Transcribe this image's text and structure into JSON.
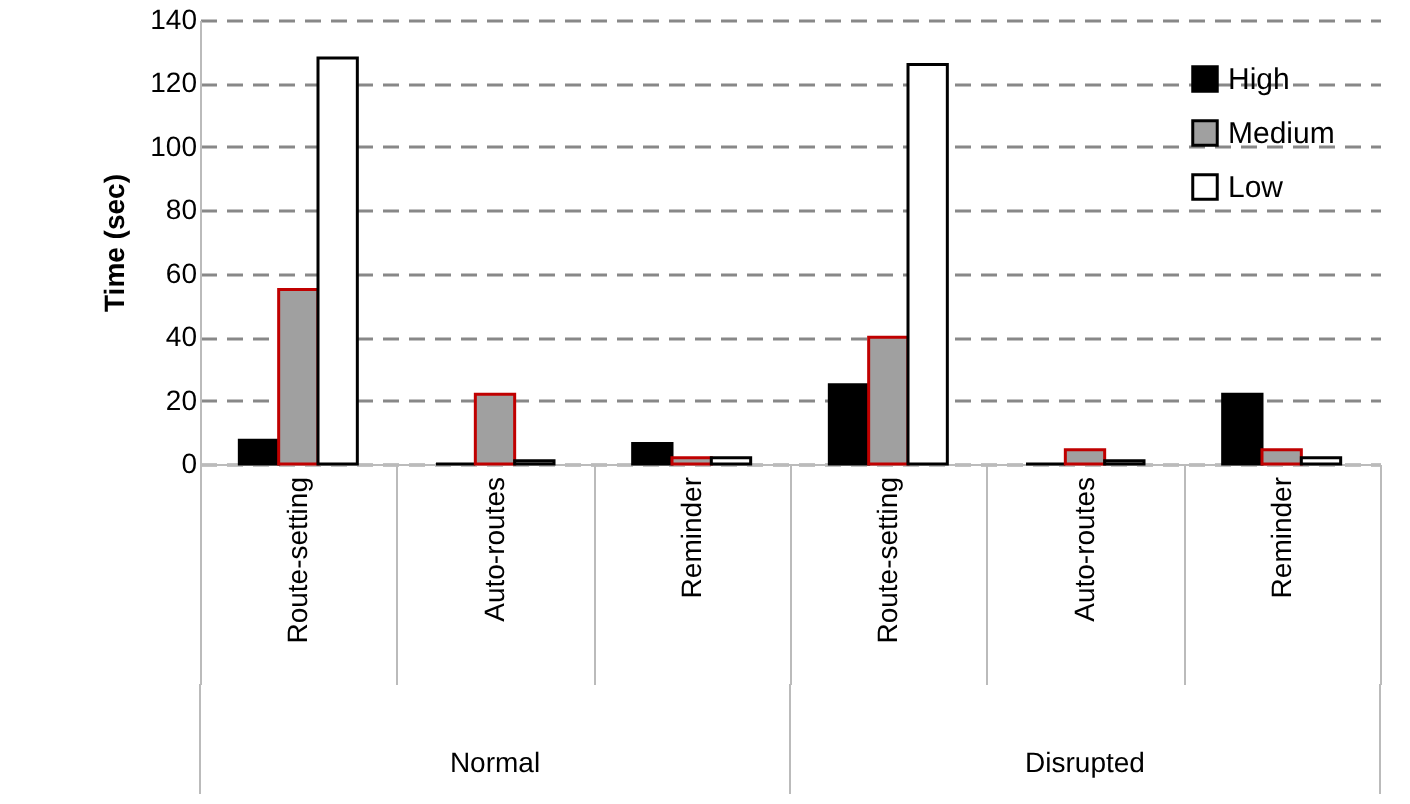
{
  "chart_data": {
    "type": "bar",
    "ylabel": "Time (sec)",
    "categories": [
      "Route-setting",
      "Auto-routes",
      "Reminder",
      "Route-setting",
      "Auto-routes",
      "Reminder"
    ],
    "annotations": [
      "Normal",
      "Disrupted"
    ],
    "series": [
      {
        "name": "High",
        "color": "#000000",
        "values": [
          7.5,
          0,
          6.5,
          25,
          0,
          22
        ]
      },
      {
        "name": "Medium",
        "color": "#a0a0a0",
        "values": [
          55,
          22,
          2,
          40,
          4.5,
          4.5
        ]
      },
      {
        "name": "Low",
        "color": "#ffffff",
        "values": [
          128,
          1,
          2,
          126,
          1,
          2
        ]
      }
    ],
    "ylim": [
      0,
      140
    ],
    "yticks": [
      0,
      20,
      40,
      60,
      80,
      100,
      120,
      140
    ],
    "grid": "y",
    "legend": "top right"
  }
}
